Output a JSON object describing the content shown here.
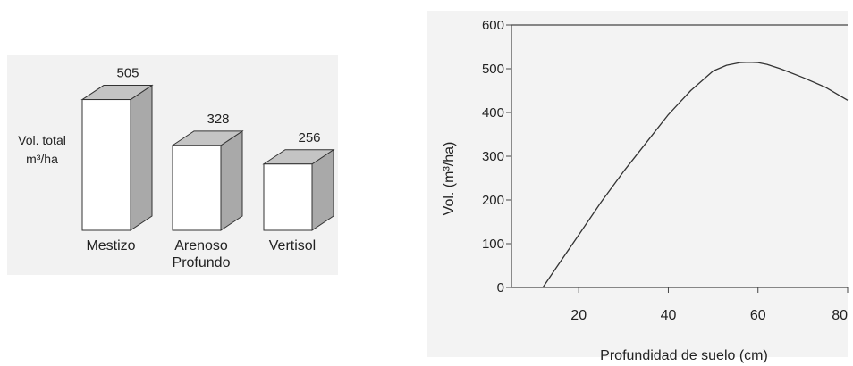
{
  "chart_data": [
    {
      "type": "bar",
      "title": "",
      "ylabel_line1": "Vol. total",
      "ylabel_line2": "m³/ha",
      "categories": [
        {
          "line1": "Mestizo",
          "line2": ""
        },
        {
          "line1": "Arenoso",
          "line2": "Profundo"
        },
        {
          "line1": "Vertisol",
          "line2": ""
        }
      ],
      "values": [
        505,
        328,
        256
      ],
      "value_labels": [
        "505",
        "328",
        "256"
      ],
      "colors": {
        "front": "#ffffff",
        "top": "#c4c4c4",
        "side": "#a9a9a9",
        "stroke": "#333333"
      }
    },
    {
      "type": "line",
      "title": "",
      "xlabel": "Profundidad de suelo (cm)",
      "ylabel": "Vol. (m³/ha)",
      "xlim": [
        5,
        80
      ],
      "ylim": [
        0,
        600
      ],
      "xticks": [
        20,
        40,
        60,
        80
      ],
      "xtick_labels": [
        "20",
        "40",
        "60",
        "80"
      ],
      "yticks": [
        0,
        100,
        200,
        300,
        400,
        500,
        600
      ],
      "ytick_labels": [
        "0",
        "100",
        "200",
        "300",
        "400",
        "500",
        "600"
      ],
      "grid": false,
      "series": [
        {
          "x": [
            12,
            15,
            20,
            25,
            30,
            35,
            40,
            45,
            50,
            53,
            56,
            58,
            60,
            62,
            65,
            70,
            75,
            80
          ],
          "y": [
            0,
            45,
            120,
            195,
            265,
            330,
            395,
            450,
            495,
            508,
            514,
            515,
            514,
            510,
            500,
            480,
            458,
            428
          ]
        }
      ]
    }
  ]
}
